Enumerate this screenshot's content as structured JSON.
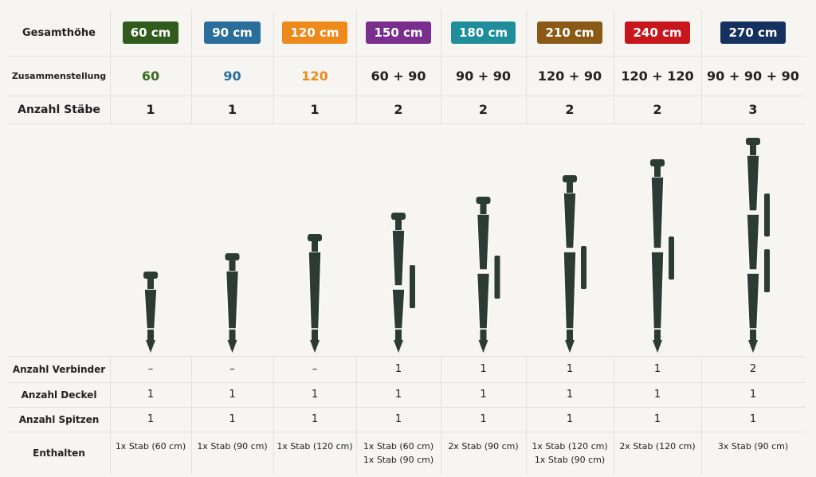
{
  "table": {
    "header": {
      "label": "Gesamthöhe",
      "cells": [
        "60 cm",
        "90 cm",
        "120 cm",
        "150 cm",
        "180 cm",
        "210 cm",
        "240 cm",
        "270 cm"
      ],
      "colors": [
        "#2f5c1c",
        "#2a6e9c",
        "#ee8a1c",
        "#7a2e8e",
        "#1f8e9a",
        "#8a5a16",
        "#c8161d",
        "#15315f"
      ]
    },
    "rows": [
      {
        "label": "Zusammenstellung",
        "cells": [
          "60",
          "90",
          "120",
          "60 + 90",
          "90 + 90",
          "120 + 90",
          "120 + 120",
          "90 + 90 + 90"
        ],
        "colors": [
          "#3d6b22",
          "#2a6e9c",
          "#ee8a1c",
          "#222222",
          "#222222",
          "#222222",
          "#222222",
          "#222222"
        ]
      },
      {
        "label": "Anzahl Stäbe",
        "cells": [
          "1",
          "1",
          "1",
          "2",
          "2",
          "2",
          "2",
          "3"
        ]
      }
    ],
    "details": [
      {
        "label": "Anzahl Verbinder",
        "cells": [
          "–",
          "–",
          "–",
          "1",
          "1",
          "1",
          "1",
          "2"
        ]
      },
      {
        "label": "Anzahl Deckel",
        "cells": [
          "1",
          "1",
          "1",
          "1",
          "1",
          "1",
          "1",
          "1"
        ]
      },
      {
        "label": "Anzahl Spitzen",
        "cells": [
          "1",
          "1",
          "1",
          "1",
          "1",
          "1",
          "1",
          "1"
        ]
      },
      {
        "label": "Enthalten",
        "cells": [
          [
            "1x Stab (60 cm)"
          ],
          [
            "1x Stab (90 cm)"
          ],
          [
            "1x Stab (120 cm)"
          ],
          [
            "1x Stab (60 cm)",
            "1x Stab (90 cm)"
          ],
          [
            "2x Stab (90 cm)"
          ],
          [
            "1x Stab (120 cm)",
            "1x Stab (90 cm)"
          ],
          [
            "2x Stab (120 cm)"
          ],
          [
            "3x Stab (90 cm)"
          ]
        ]
      }
    ]
  }
}
